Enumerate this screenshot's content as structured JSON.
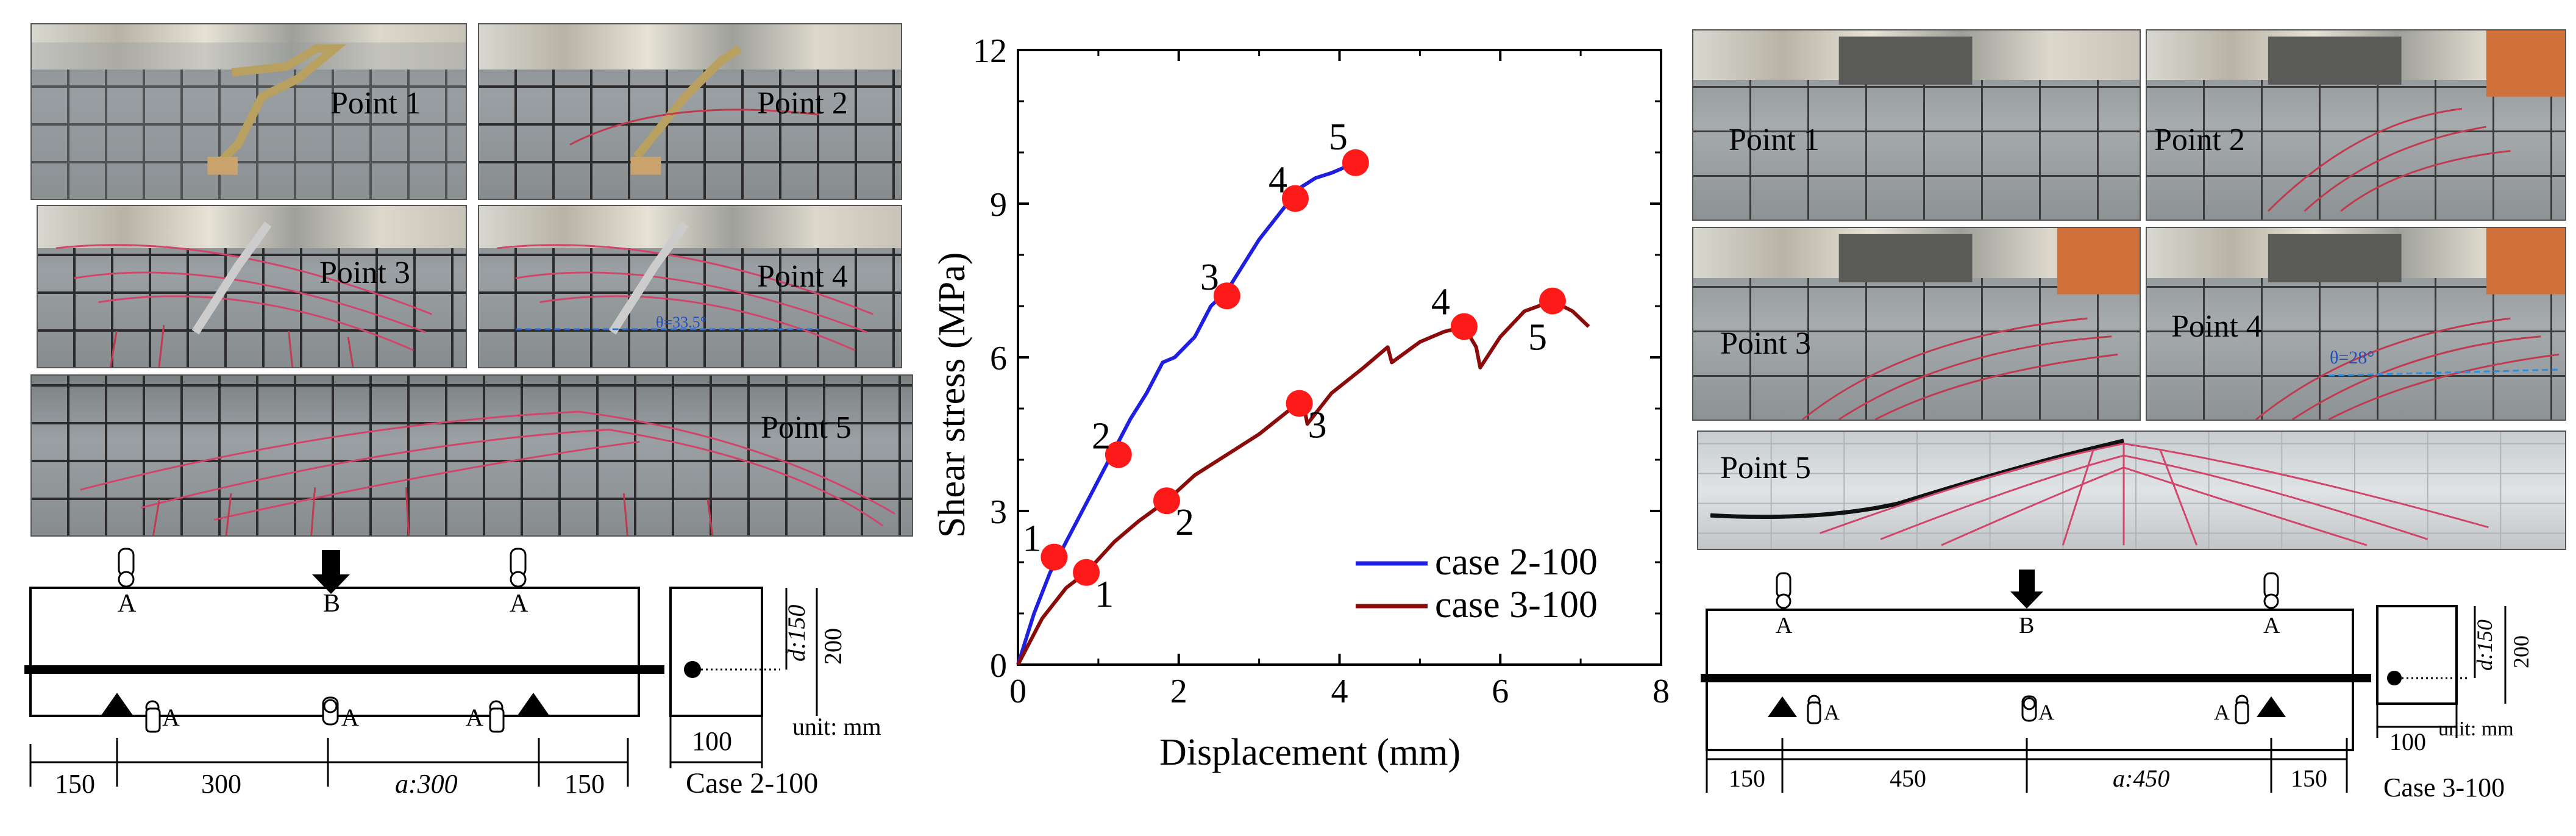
{
  "chart_data": {
    "type": "line",
    "xlabel": "Displacement (mm)",
    "ylabel": "Shear stress (MPa)",
    "xlim": [
      0,
      8
    ],
    "ylim": [
      0,
      12
    ],
    "xticks": [
      "0",
      "2",
      "4",
      "6",
      "8"
    ],
    "yticks": [
      "0",
      "3",
      "6",
      "9",
      "12"
    ],
    "grid": false,
    "legend_position": "bottom-right",
    "series": [
      {
        "name": "case 2-100",
        "color": "#1f1fe0",
        "x": [
          0,
          0.2,
          0.4,
          0.6,
          0.8,
          1.0,
          1.2,
          1.4,
          1.6,
          1.8,
          1.95,
          2.2,
          2.4,
          2.6,
          2.8,
          3.0,
          3.2,
          3.4,
          3.5,
          3.7,
          3.9,
          4.2
        ],
        "y": [
          0,
          1.0,
          1.8,
          2.4,
          3.0,
          3.6,
          4.2,
          4.8,
          5.3,
          5.9,
          6.0,
          6.4,
          7.0,
          7.3,
          7.8,
          8.3,
          8.7,
          9.1,
          9.3,
          9.5,
          9.6,
          9.8
        ],
        "points": [
          {
            "label": "1",
            "x": 0.45,
            "y": 2.1
          },
          {
            "label": "2",
            "x": 1.25,
            "y": 4.1
          },
          {
            "label": "3",
            "x": 2.6,
            "y": 7.2
          },
          {
            "label": "4",
            "x": 3.45,
            "y": 9.1
          },
          {
            "label": "5",
            "x": 4.2,
            "y": 9.8
          }
        ]
      },
      {
        "name": "case 3-100",
        "color": "#8b0a0a",
        "x": [
          0,
          0.3,
          0.6,
          0.85,
          1.2,
          1.5,
          1.85,
          2.2,
          2.6,
          3.0,
          3.4,
          3.55,
          3.6,
          3.9,
          4.3,
          4.6,
          4.65,
          5.0,
          5.3,
          5.55,
          5.7,
          5.75,
          6.0,
          6.3,
          6.65,
          6.9,
          7.1
        ],
        "y": [
          0,
          0.9,
          1.5,
          1.8,
          2.4,
          2.8,
          3.2,
          3.7,
          4.1,
          4.5,
          5.0,
          5.1,
          4.7,
          5.3,
          5.8,
          6.2,
          5.9,
          6.3,
          6.5,
          6.6,
          6.2,
          5.8,
          6.4,
          6.9,
          7.1,
          6.9,
          6.6
        ],
        "points": [
          {
            "label": "1",
            "x": 0.85,
            "y": 1.8
          },
          {
            "label": "2",
            "x": 1.85,
            "y": 3.2
          },
          {
            "label": "3",
            "x": 3.5,
            "y": 5.1
          },
          {
            "label": "4",
            "x": 5.55,
            "y": 6.6
          },
          {
            "label": "5",
            "x": 6.65,
            "y": 7.1
          }
        ]
      }
    ]
  },
  "left_panel": {
    "photos": [
      "Point 1",
      "Point 2",
      "Point 3",
      "Point 4",
      "Point 5"
    ],
    "angle_note": "θ=33.5°",
    "diagram": {
      "gauge_top": [
        "A",
        "B",
        "A"
      ],
      "gauge_bottom": [
        "A",
        "A",
        "A"
      ],
      "dims": [
        "150",
        "300",
        "a:300",
        "150"
      ],
      "section_width": "100",
      "section_depth": "d:150",
      "section_height": "200",
      "unit": "unit: mm",
      "case_label": "Case 2-100"
    }
  },
  "right_panel": {
    "photos": [
      "Point 1",
      "Point 2",
      "Point 3",
      "Point 4",
      "Point 5"
    ],
    "angle_note": "θ=28°",
    "diagram": {
      "gauge_top": [
        "A",
        "B",
        "A"
      ],
      "gauge_bottom": [
        "A",
        "A",
        "A"
      ],
      "dims": [
        "150",
        "450",
        "a:450",
        "150"
      ],
      "section_width": "100",
      "section_depth": "d:150",
      "section_height": "200",
      "unit": "unit: mm",
      "case_label": "Case 3-100"
    }
  }
}
